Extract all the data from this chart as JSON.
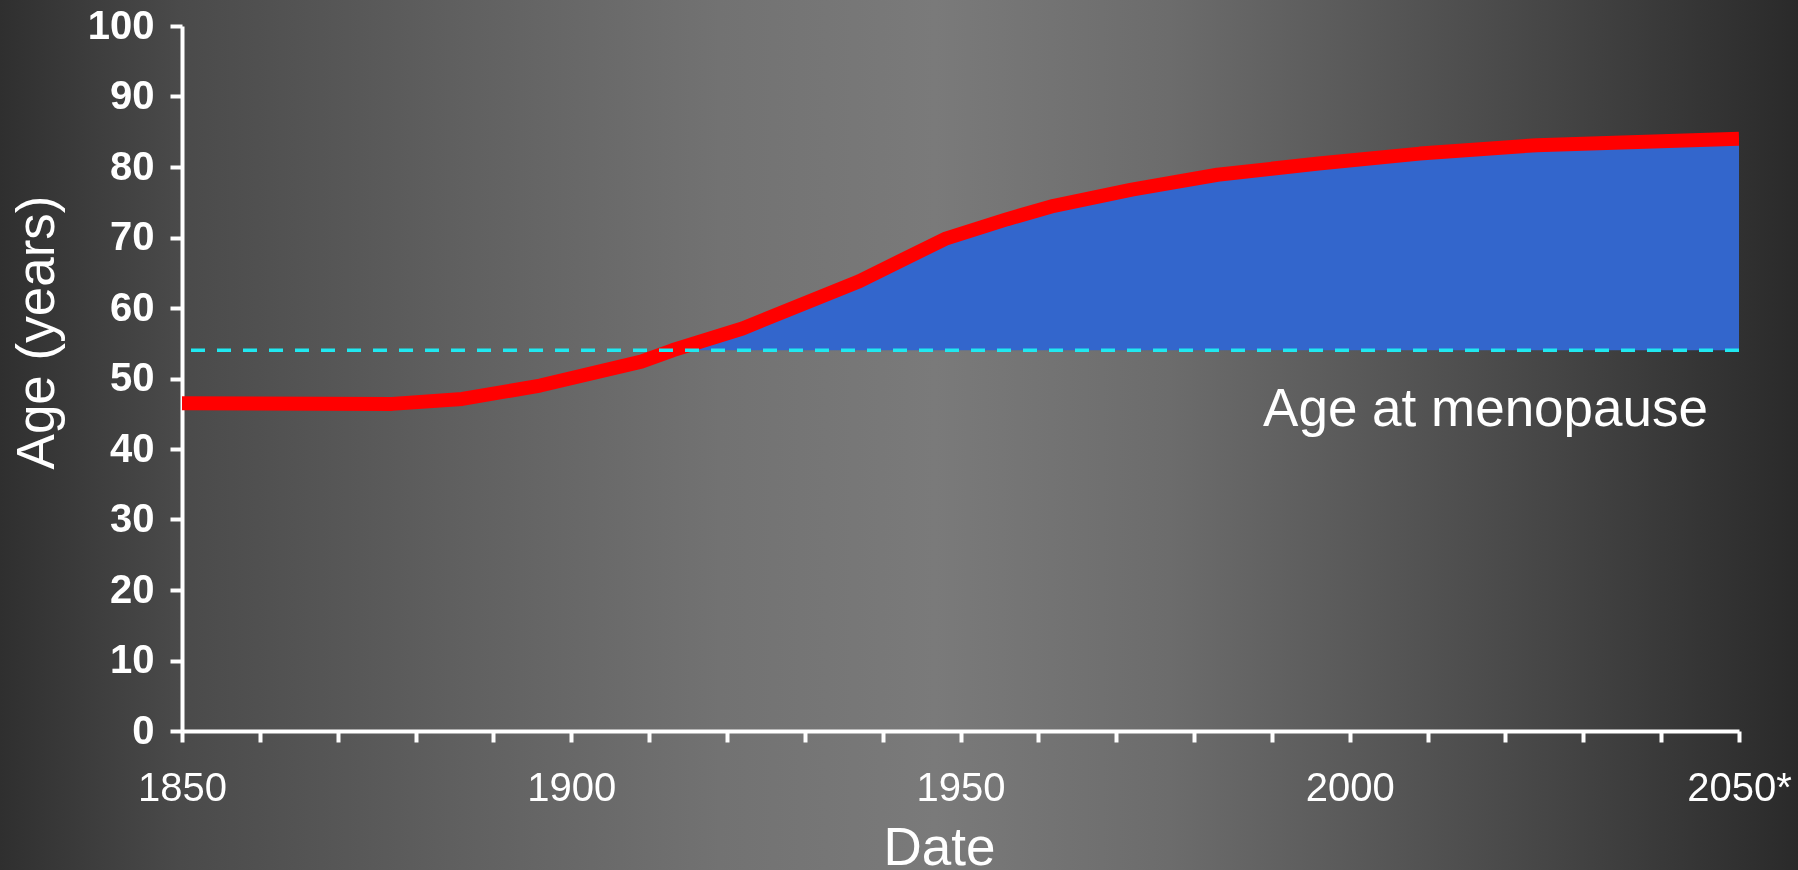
{
  "chart_data": {
    "type": "line",
    "xlabel": "Date",
    "ylabel": "Age (years)",
    "series": [
      {
        "color": "#ff0000",
        "x": [
          1850,
          1877,
          1886,
          1896,
          1909,
          1913,
          1922,
          1937,
          1948,
          1956,
          1962,
          1972,
          1983,
          1996,
          2009,
          2024,
          2050
        ],
        "values": [
          46.5,
          46.4,
          47.1,
          49,
          52.4,
          54,
          57.1,
          63.8,
          69.8,
          72.6,
          74.5,
          76.8,
          78.9,
          80.5,
          81.9,
          83.1,
          84
        ],
        "lower": [
          null,
          null,
          null,
          null,
          null,
          54,
          54,
          54,
          54,
          54,
          54,
          54,
          54,
          54,
          54,
          54,
          54
        ],
        "upper": [
          null,
          null,
          null,
          null,
          null,
          54,
          57.1,
          63.8,
          69.8,
          72.6,
          74.5,
          76.8,
          78.9,
          80.5,
          81.9,
          83.1,
          84
        ]
      }
    ],
    "xlim": [
      1850,
      2050
    ],
    "xticks": [
      1850,
      {
        "value": 1860,
        "label": null
      },
      {
        "value": 1870,
        "label": null
      },
      {
        "value": 1880,
        "label": null
      },
      {
        "value": 1890,
        "label": null
      },
      1900,
      {
        "value": 1910,
        "label": null
      },
      {
        "value": 1920,
        "label": null
      },
      {
        "value": 1930,
        "label": null
      },
      {
        "value": 1940,
        "label": null
      },
      1950,
      {
        "value": 1960,
        "label": null
      },
      {
        "value": 1970,
        "label": null
      },
      {
        "value": 1980,
        "label": null
      },
      {
        "value": 1990,
        "label": null
      },
      2000,
      {
        "value": 2010,
        "label": null
      },
      {
        "value": 2020,
        "label": null
      },
      {
        "value": 2030,
        "label": null
      },
      {
        "value": 2040,
        "label": null
      },
      {
        "value": 2050,
        "label": "2050*"
      }
    ],
    "ylim": [
      0,
      100
    ],
    "yticks": [
      0,
      10,
      20,
      30,
      40,
      50,
      60,
      70,
      80,
      90,
      100
    ],
    "ref_lines": [
      {
        "axis": "y",
        "value": 54,
        "label": "Age at menopause",
        "color": "#20e8f0",
        "line_style": "dashed"
      }
    ]
  }
}
